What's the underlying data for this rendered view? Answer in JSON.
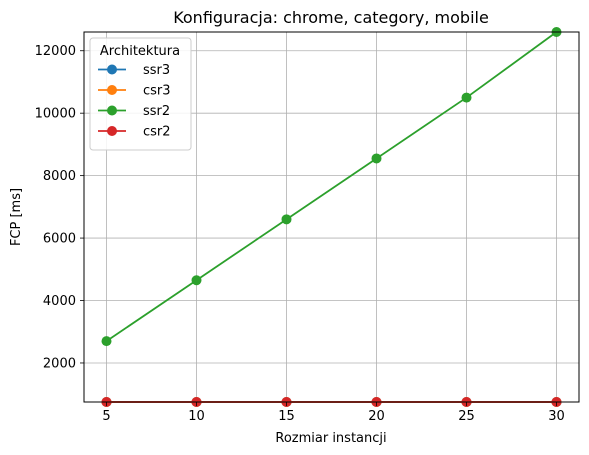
{
  "chart_data": {
    "type": "line",
    "title": "Konfiguracja: chrome, category, mobile",
    "xlabel": "Rozmiar instancji",
    "ylabel": "FCP [ms]",
    "x": [
      5,
      10,
      15,
      20,
      25,
      30
    ],
    "xticks": [
      "5",
      "10",
      "15",
      "20",
      "25",
      "30"
    ],
    "yticks": [
      "2000",
      "4000",
      "6000",
      "8000",
      "10000",
      "12000"
    ],
    "xlim": [
      3.75,
      31.25
    ],
    "ylim": [
      750,
      12600
    ],
    "grid": true,
    "legend": {
      "title": "Architektura",
      "placement": "top-left"
    },
    "series": [
      {
        "name": "ssr3",
        "color": "#1f77b4",
        "values": [
          750,
          750,
          750,
          750,
          750,
          750
        ]
      },
      {
        "name": "csr3",
        "color": "#ff7f0e",
        "values": [
          750,
          750,
          750,
          750,
          750,
          750
        ]
      },
      {
        "name": "ssr2",
        "color": "#2ca02c",
        "values": [
          2700,
          4650,
          6600,
          8550,
          10500,
          12600
        ]
      },
      {
        "name": "csr2",
        "color": "#d62728",
        "values": [
          750,
          750,
          750,
          750,
          750,
          750
        ]
      }
    ]
  }
}
